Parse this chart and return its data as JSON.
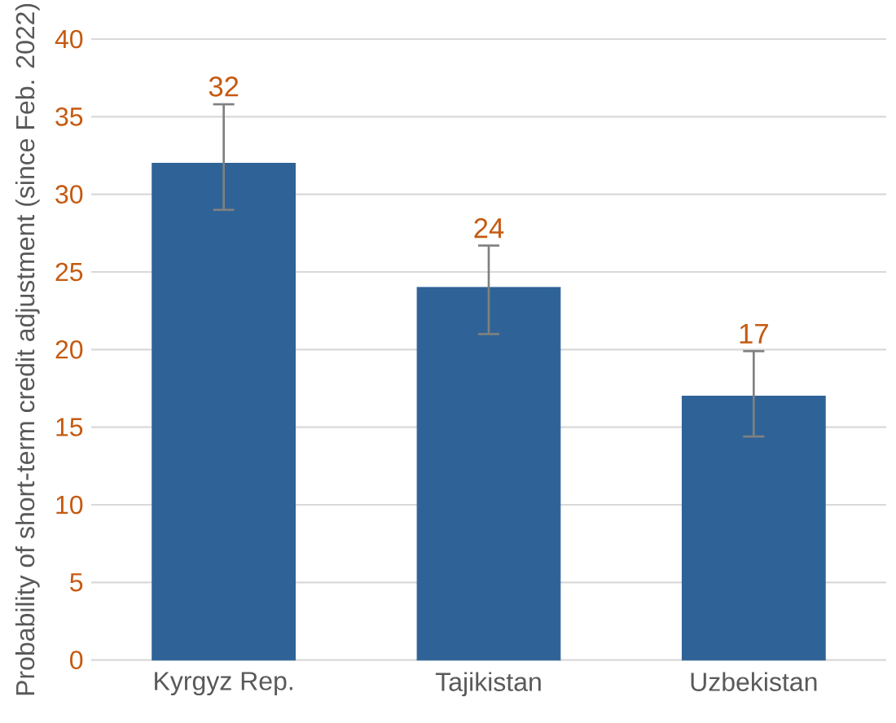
{
  "chart_data": {
    "type": "bar",
    "ylabel": "Probability of short-term credit adjustment (since Feb. 2022)",
    "categories": [
      "Kyrgyz Rep.",
      "Tajikistan",
      "Uzbekistan"
    ],
    "values": [
      32,
      24,
      17
    ],
    "color": "#2f6397",
    "errors": [
      [
        29.0,
        35.8
      ],
      [
        21.0,
        26.7
      ],
      [
        14.4,
        19.9
      ]
    ],
    "data_labels": true,
    "ylim": [
      0,
      40
    ],
    "yticks": [
      0,
      5,
      10,
      15,
      20,
      25,
      30,
      35,
      40
    ],
    "grid": "y"
  }
}
